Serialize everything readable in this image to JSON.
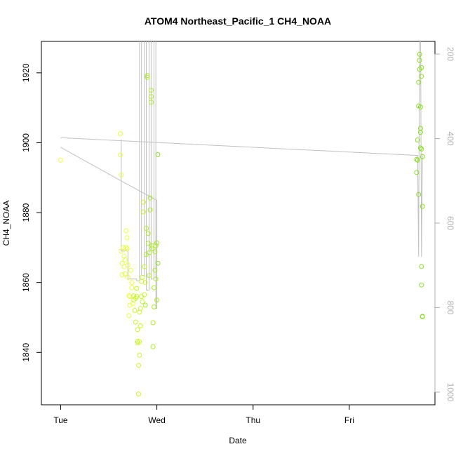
{
  "chart_data": {
    "type": "scatter",
    "title": "ATOM4 Northeast_Pacific_1 CH4_NOAA",
    "xlabel": "Date",
    "ylabel": "CH4_NOAA",
    "x_tick_labels": [
      "Tue",
      "Wed",
      "Thu",
      "Fri"
    ],
    "x_tick_days": [
      0,
      1,
      2,
      3
    ],
    "xlim_days": [
      -0.2,
      3.89
    ],
    "ylim": [
      1825,
      1929
    ],
    "y_ticks": [
      1840,
      1860,
      1880,
      1900,
      1920
    ],
    "right_axis": {
      "label": "",
      "ticks": [
        200,
        400,
        600,
        800,
        1000
      ],
      "lim": [
        1030,
        170
      ],
      "color": "#b0b0b0"
    },
    "grid": false,
    "point_colors": [
      "#e8ff3a",
      "#c9f52a",
      "#a8ec26",
      "#88e020"
    ],
    "line_color": "#c0c0c0",
    "series": [
      {
        "values": [
          [
            -0.0,
            1895.0
          ],
          [
            0.62,
            1902.6
          ],
          [
            0.62,
            1896.5
          ],
          [
            0.63,
            1890.8
          ],
          [
            0.63,
            1869.0
          ],
          [
            0.64,
            1865.5
          ],
          [
            0.64,
            1862.2
          ],
          [
            0.65,
            1870.0
          ],
          [
            0.66,
            1864.5
          ],
          [
            0.66,
            1867.5
          ],
          [
            0.67,
            1862.5
          ],
          [
            0.67,
            1866.5
          ],
          [
            0.68,
            1870.0
          ],
          [
            0.68,
            1874.8
          ],
          [
            0.69,
            1872.8
          ],
          [
            0.69,
            1869.6
          ],
          [
            0.7,
            1865.0
          ],
          [
            0.7,
            1861.5
          ],
          [
            0.71,
            1856.2
          ],
          [
            0.71,
            1850.5
          ],
          [
            0.72,
            1853.5
          ],
          [
            0.72,
            1856.0
          ],
          [
            0.73,
            1863.5
          ],
          [
            0.74,
            1860.0
          ],
          [
            0.74,
            1858.5
          ],
          [
            0.75,
            1854.0
          ],
          [
            0.76,
            1856.2
          ],
          [
            0.76,
            1855.0
          ],
          [
            0.77,
            1852.0
          ],
          [
            0.78,
            1855.5
          ],
          [
            0.78,
            1848.7
          ],
          [
            0.79,
            1856.0
          ],
          [
            0.79,
            1858.3
          ],
          [
            0.8,
            1846.5
          ],
          [
            0.8,
            1843.2
          ],
          [
            0.8,
            1842.7
          ],
          [
            0.81,
            1828.1
          ],
          [
            0.81,
            1836.3
          ],
          [
            0.82,
            1839.2
          ],
          [
            0.82,
            1843.0
          ],
          [
            0.82,
            1851.5
          ],
          [
            0.83,
            1847.6
          ],
          [
            0.83,
            1852.6
          ],
          [
            0.84,
            1856.0
          ],
          [
            0.84,
            1860.3
          ],
          [
            0.85,
            1861.5
          ],
          [
            0.85,
            1854.5
          ],
          [
            0.86,
            1883.0
          ],
          [
            0.86,
            1880.2
          ],
          [
            0.87,
            1856.5
          ],
          [
            0.87,
            1864.5
          ],
          [
            0.88,
            1860.0
          ],
          [
            0.88,
            1853.5
          ],
          [
            0.89,
            1868.0
          ],
          [
            0.89,
            1875.5
          ],
          [
            0.9,
            1918.7
          ],
          [
            0.9,
            1919.2
          ],
          [
            0.91,
            1871.2
          ],
          [
            0.91,
            1874.0
          ],
          [
            0.92,
            1868.5
          ],
          [
            0.92,
            1862.0
          ],
          [
            0.93,
            1880.8
          ],
          [
            0.93,
            1884.2
          ],
          [
            0.94,
            1915.0
          ],
          [
            0.94,
            1913.2
          ],
          [
            0.94,
            1911.6
          ],
          [
            0.95,
            1870.5
          ],
          [
            0.95,
            1869.8
          ],
          [
            0.96,
            1848.5
          ],
          [
            0.96,
            1841.6
          ],
          [
            0.97,
            1853.0
          ],
          [
            0.97,
            1858.5
          ],
          [
            0.98,
            1863.5
          ],
          [
            0.98,
            1868.8
          ],
          [
            0.99,
            1870.5
          ],
          [
            0.99,
            1861.0
          ],
          [
            1.0,
            1855.0
          ],
          [
            1.0,
            1871.3
          ],
          [
            1.01,
            1865.5
          ],
          [
            1.01,
            1896.6
          ],
          [
            3.7,
            1891.5
          ],
          [
            3.7,
            1895.2
          ],
          [
            3.71,
            1900.8
          ],
          [
            3.71,
            1895.0
          ],
          [
            3.72,
            1885.2
          ],
          [
            3.72,
            1910.5
          ],
          [
            3.72,
            1917.3
          ],
          [
            3.73,
            1921.0
          ],
          [
            3.73,
            1925.3
          ],
          [
            3.73,
            1923.6
          ],
          [
            3.74,
            1910.2
          ],
          [
            3.74,
            1904.1
          ],
          [
            3.74,
            1903.0
          ],
          [
            3.74,
            1898.5
          ],
          [
            3.75,
            1921.5
          ],
          [
            3.75,
            1919.0
          ],
          [
            3.75,
            1898.2
          ],
          [
            3.75,
            1864.6
          ],
          [
            3.75,
            1859.3
          ],
          [
            3.76,
            1850.3
          ],
          [
            3.76,
            1850.2
          ],
          [
            3.76,
            1896.0
          ],
          [
            3.76,
            1881.8
          ]
        ]
      }
    ],
    "line_series_right_axis": [
      [
        0.0,
        398
      ],
      [
        3.71,
        440
      ],
      [
        3.72,
        680
      ],
      [
        3.73,
        100
      ],
      [
        3.74,
        100
      ],
      [
        3.75,
        680
      ],
      [
        3.76,
        440
      ]
    ],
    "line_series_left_axis": [
      [
        0.0,
        1898.7
      ],
      [
        0.62,
        1889.2
      ],
      [
        1.0,
        1883.5
      ],
      [
        1.0,
        1852.6
      ],
      [
        0.99,
        1852.6
      ],
      [
        0.99,
        1930
      ],
      [
        0.97,
        1930
      ],
      [
        0.97,
        1861.0
      ],
      [
        0.94,
        1861.0
      ],
      [
        0.94,
        1930
      ],
      [
        0.92,
        1930
      ],
      [
        0.92,
        1857.8
      ],
      [
        0.89,
        1857.8
      ],
      [
        0.89,
        1930
      ],
      [
        0.87,
        1930
      ],
      [
        0.87,
        1862.0
      ],
      [
        0.84,
        1862.0
      ],
      [
        0.84,
        1930
      ],
      [
        0.82,
        1930
      ],
      [
        0.82,
        1860.5
      ],
      [
        0.79,
        1860.5
      ],
      [
        0.79,
        1861.0
      ],
      [
        0.7,
        1861.0
      ],
      [
        0.7,
        1869.0
      ],
      [
        0.63,
        1869.0
      ],
      [
        0.63,
        1901.0
      ]
    ]
  }
}
